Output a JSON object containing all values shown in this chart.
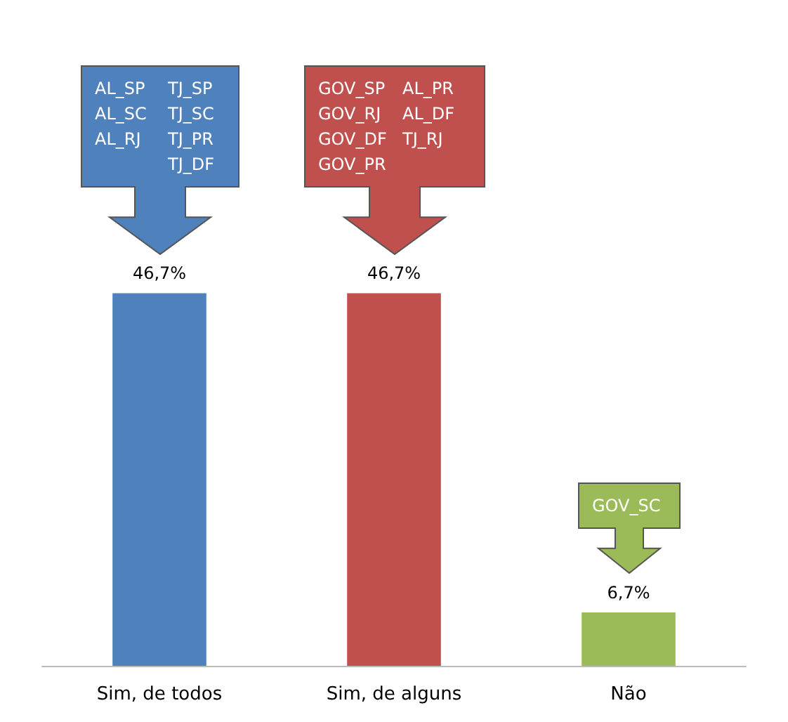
{
  "chart_data": {
    "type": "bar",
    "categories": [
      "Sim, de todos",
      "Sim, de alguns",
      "Não"
    ],
    "values": [
      46.7,
      46.7,
      6.7
    ],
    "colors": [
      "#4f81bd",
      "#c0504d",
      "#9bbb59"
    ],
    "value_labels": [
      "46,7%",
      "46,7%",
      "6,7%"
    ],
    "annotations": [
      "AL_SP\nAL_SC\nAL_RJ\nTJ_SP\nTJ_SC\nTJ_PR\nTJ_DF",
      "GOV_SP\nGOV_RJ\nGOV_DF\nGOV_PR\nAL_PR\nAL_DF\nTJ_RJ",
      "GOV_SC"
    ]
  }
}
